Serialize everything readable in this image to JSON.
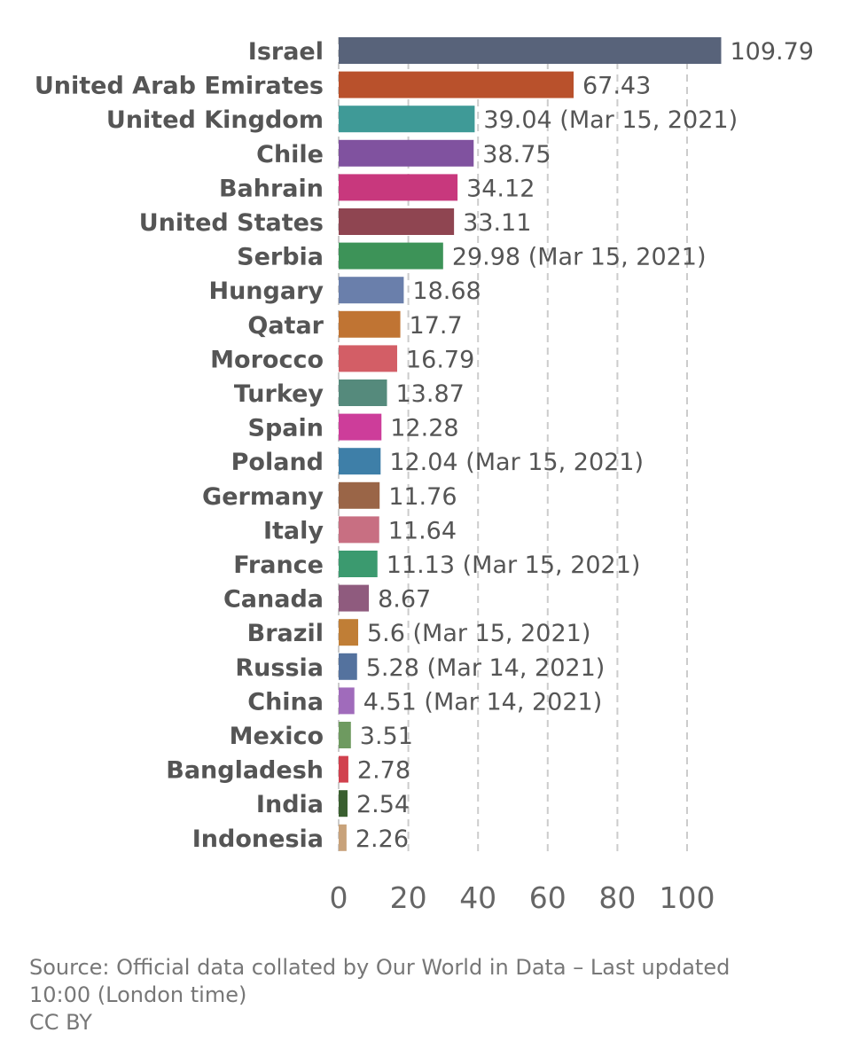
{
  "chart_data": {
    "type": "bar",
    "orientation": "horizontal",
    "categories": [
      "Israel",
      "United Arab Emirates",
      "United Kingdom",
      "Chile",
      "Bahrain",
      "United States",
      "Serbia",
      "Hungary",
      "Qatar",
      "Morocco",
      "Turkey",
      "Spain",
      "Poland",
      "Germany",
      "Italy",
      "France",
      "Canada",
      "Brazil",
      "Russia",
      "China",
      "Mexico",
      "Bangladesh",
      "India",
      "Indonesia"
    ],
    "values": [
      109.79,
      67.43,
      39.04,
      38.75,
      34.12,
      33.11,
      29.98,
      18.68,
      17.7,
      16.79,
      13.87,
      12.28,
      12.04,
      11.76,
      11.64,
      11.13,
      8.67,
      5.6,
      5.28,
      4.51,
      3.51,
      2.78,
      2.54,
      2.26
    ],
    "value_labels": [
      "109.79",
      "67.43",
      "39.04 (Mar 15, 2021)",
      "38.75",
      "34.12",
      "33.11",
      "29.98 (Mar 15, 2021)",
      "18.68",
      "17.7",
      "16.79",
      "13.87",
      "12.28",
      "12.04 (Mar 15, 2021)",
      "11.76",
      "11.64",
      "11.13 (Mar 15, 2021)",
      "8.67",
      "5.6 (Mar 15, 2021)",
      "5.28 (Mar 14, 2021)",
      "4.51 (Mar 14, 2021)",
      "3.51",
      "2.78",
      "2.54",
      "2.26"
    ],
    "colors": [
      "#58637a",
      "#b9512c",
      "#3f9a97",
      "#80529f",
      "#c8387d",
      "#8f4551",
      "#3d9358",
      "#6a7fab",
      "#c07433",
      "#d35e66",
      "#558a7c",
      "#cd3d9a",
      "#3e7fa8",
      "#9a6547",
      "#c86f82",
      "#3b9a6f",
      "#8f5b7e",
      "#c07e36",
      "#54729e",
      "#a06bbb",
      "#6e9a60",
      "#d1414e",
      "#3a5f30",
      "#c8a27a"
    ],
    "x_ticks": [
      "0",
      "20",
      "40",
      "60",
      "80",
      "100"
    ],
    "xlim": [
      0,
      110
    ],
    "grid": "vertical dashed",
    "title": "",
    "xlabel": "",
    "ylabel": ""
  },
  "footer": {
    "source_line1": "Source: Official data collated by Our World in Data – Last updated",
    "source_line2": "10:00 (London time)",
    "license": "CC BY"
  }
}
